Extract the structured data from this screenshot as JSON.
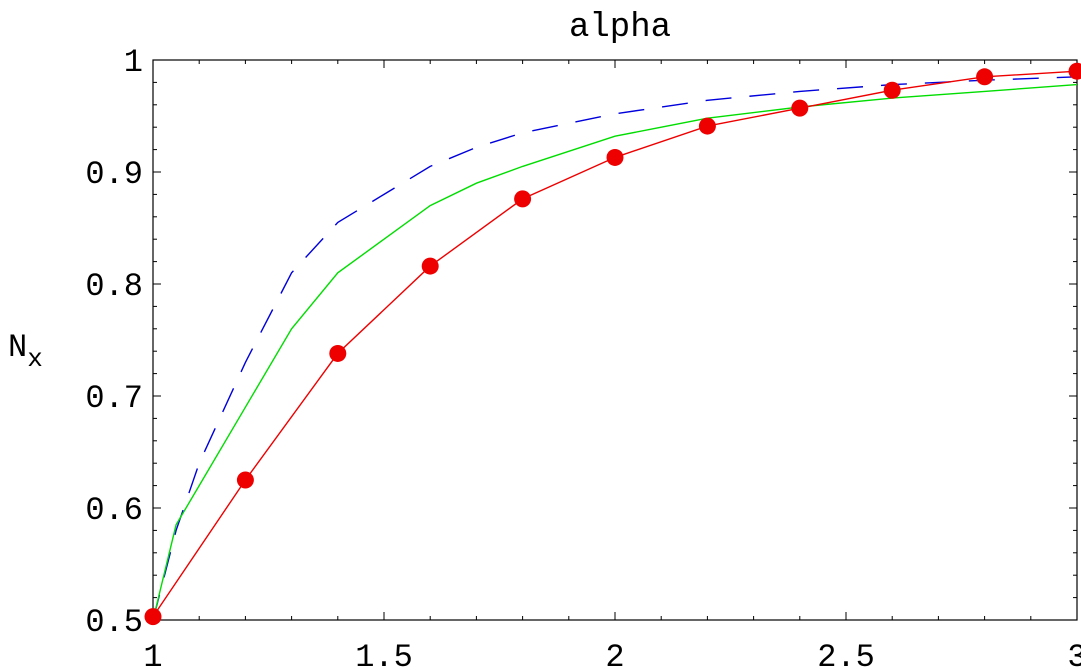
{
  "chart_data": {
    "type": "line",
    "title": "alpha",
    "xlabel": "",
    "ylabel_main": "N",
    "ylabel_sub": "x",
    "xlim": [
      1,
      3
    ],
    "ylim": [
      0.5,
      1
    ],
    "grid": false,
    "x_ticks": [
      1,
      1.5,
      2,
      2.5,
      3
    ],
    "x_tick_labels": [
      "1",
      "1.5",
      "2",
      "2.5",
      "3"
    ],
    "y_ticks": [
      0.5,
      0.6,
      0.7,
      0.8,
      0.9,
      1
    ],
    "y_tick_labels": [
      "0.5",
      "0.6",
      "0.7",
      "0.8",
      "0.9",
      "1"
    ],
    "series": [
      {
        "style": "dashed",
        "color": "#0000dd",
        "x": [
          1,
          1.05,
          1.1,
          1.2,
          1.3,
          1.4,
          1.5,
          1.6,
          1.7,
          1.8,
          2.0,
          2.2,
          2.4,
          2.6,
          2.8,
          3.0
        ],
        "y": [
          0.5,
          0.58,
          0.64,
          0.73,
          0.81,
          0.855,
          0.88,
          0.905,
          0.922,
          0.935,
          0.952,
          0.964,
          0.972,
          0.978,
          0.982,
          0.985
        ]
      },
      {
        "style": "solid",
        "color": "#00dd00",
        "x": [
          1,
          1.05,
          1.1,
          1.2,
          1.3,
          1.4,
          1.5,
          1.6,
          1.7,
          1.8,
          2.0,
          2.2,
          2.4,
          2.6,
          2.8,
          3.0
        ],
        "y": [
          0.5,
          0.585,
          0.62,
          0.69,
          0.76,
          0.81,
          0.84,
          0.87,
          0.89,
          0.905,
          0.932,
          0.948,
          0.958,
          0.966,
          0.972,
          0.978
        ]
      },
      {
        "style": "solid-markers",
        "color": "#ee0000",
        "x": [
          1.0,
          1.2,
          1.4,
          1.6,
          1.8,
          2.0,
          2.2,
          2.4,
          2.6,
          2.8,
          3.0
        ],
        "y": [
          0.503,
          0.625,
          0.738,
          0.816,
          0.876,
          0.913,
          0.941,
          0.957,
          0.973,
          0.985,
          0.99
        ]
      }
    ]
  }
}
